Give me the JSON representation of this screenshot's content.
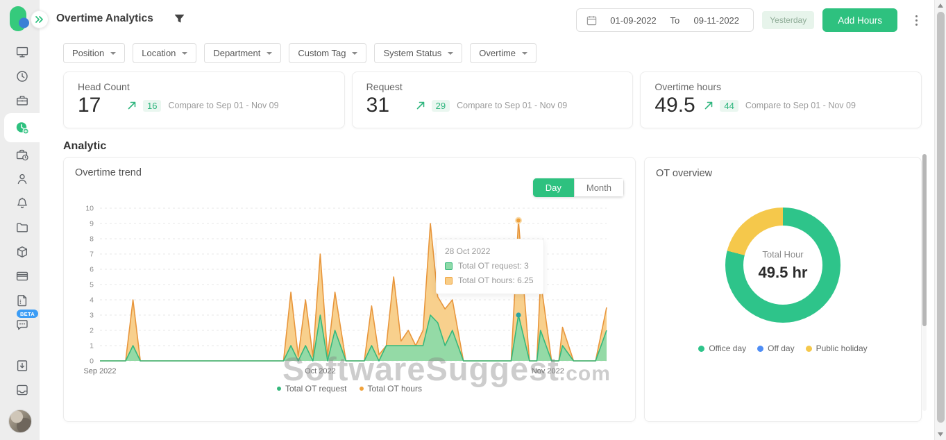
{
  "header": {
    "title": "Overtime Analytics",
    "date_from": "01-09-2022",
    "date_separator": "To",
    "date_to": "09-11-2022",
    "yesterday_label": "Yesterday",
    "add_hours_label": "Add Hours"
  },
  "filters": [
    {
      "label": "Position"
    },
    {
      "label": "Location"
    },
    {
      "label": "Department"
    },
    {
      "label": "Custom Tag"
    },
    {
      "label": "System Status"
    },
    {
      "label": "Overtime"
    }
  ],
  "stats": [
    {
      "title": "Head Count",
      "value": "17",
      "compare_value": "16",
      "compare_text": "Compare to Sep 01 - Nov 09"
    },
    {
      "title": "Request",
      "value": "31",
      "compare_value": "29",
      "compare_text": "Compare to Sep 01 - Nov 09"
    },
    {
      "title": "Overtime hours",
      "value": "49.5",
      "compare_value": "44",
      "compare_text": "Compare to Sep 01 - Nov 09"
    }
  ],
  "section_heading": "Analytic",
  "trend_card": {
    "title": "Overtime trend",
    "toggle_day": "Day",
    "toggle_month": "Month",
    "tooltip": {
      "date": "28 Oct 2022",
      "request_label": "Total OT request: 3",
      "hours_label": "Total OT hours: 6.25"
    },
    "legend": [
      {
        "label": "Total OT request",
        "color": "#35b87c"
      },
      {
        "label": "Total OT hours",
        "color": "#f0a23c"
      }
    ]
  },
  "overview_card": {
    "title": "OT overview",
    "center_label": "Total Hour",
    "center_value": "49.5 hr",
    "legend": [
      {
        "label": "Office day",
        "color": "#2ec48a"
      },
      {
        "label": "Off day",
        "color": "#4e8df5"
      },
      {
        "label": "Public holiday",
        "color": "#f5c84b"
      }
    ]
  },
  "watermark": {
    "text": "SoftwareSuggest",
    "suffix": ".com"
  },
  "sidebar": {
    "beta_badge": "BETA",
    "icons": [
      "monitor-icon",
      "clock-icon",
      "briefcase-icon",
      "overtime-clock-plus-icon",
      "briefcase-clock-icon",
      "person-icon",
      "bell-icon",
      "folder-icon",
      "package-icon",
      "credit-card-icon",
      "document-icon",
      "chat-icon",
      "file-download-icon",
      "inbox-icon",
      "user-avatar"
    ],
    "active_item": "overtime-clock-plus-icon"
  },
  "colors": {
    "accent_green": "#2ec17f",
    "chart_orange_stroke": "#e8963c",
    "chart_orange_fill": "#f8cd87",
    "chart_green_stroke": "#35b87c",
    "chart_green_fill": "#8edaa8",
    "donut_yellow": "#f5c84b",
    "legend_blue": "#4e8df5",
    "beta_blue": "#3b9cf5"
  },
  "chart_data": [
    {
      "type": "area",
      "title": "Overtime trend",
      "x_axis": "days from Sep 1 2022 to Nov 9 2022",
      "x_tick_labels": [
        "Sep 2022",
        "Oct 2022",
        "Nov 2022"
      ],
      "x_tick_positions": [
        0,
        30,
        61
      ],
      "x_range": [
        0,
        69
      ],
      "ylim": [
        0,
        10
      ],
      "y_ticks": [
        0,
        1,
        2,
        3,
        4,
        5,
        6,
        7,
        8,
        9,
        10
      ],
      "grid": "horizontal-dashed",
      "legend_position": "bottom-center",
      "series": [
        {
          "name": "Total OT hours",
          "stroke": "#e8963c",
          "fill": "#f8cd87",
          "points": [
            [
              0,
              0
            ],
            [
              3.5,
              0
            ],
            [
              4.5,
              4
            ],
            [
              5.5,
              0
            ],
            [
              25,
              0
            ],
            [
              26,
              4.5
            ],
            [
              27,
              0.3
            ],
            [
              28,
              4
            ],
            [
              29,
              0.3
            ],
            [
              30,
              7
            ],
            [
              31,
              0.3
            ],
            [
              32,
              4.5
            ],
            [
              33.5,
              0
            ],
            [
              36,
              0
            ],
            [
              37,
              3.6
            ],
            [
              38,
              0.4
            ],
            [
              39,
              1
            ],
            [
              40,
              5.5
            ],
            [
              41,
              1.3
            ],
            [
              42,
              2
            ],
            [
              43,
              1
            ],
            [
              44,
              2
            ],
            [
              45,
              9
            ],
            [
              46,
              4.2
            ],
            [
              47,
              3.4
            ],
            [
              48,
              4
            ],
            [
              49.5,
              0
            ],
            [
              56,
              0
            ],
            [
              57,
              9.2
            ],
            [
              58.5,
              0
            ],
            [
              59.5,
              0
            ],
            [
              60,
              5.3
            ],
            [
              61.5,
              0
            ],
            [
              62.5,
              0
            ],
            [
              63,
              2.2
            ],
            [
              64.5,
              0
            ],
            [
              67.5,
              0
            ],
            [
              69,
              3.5
            ]
          ]
        },
        {
          "name": "Total OT request",
          "stroke": "#35b87c",
          "fill": "#8edaa8",
          "points": [
            [
              0,
              0
            ],
            [
              3.5,
              0
            ],
            [
              4.5,
              1
            ],
            [
              5.5,
              0
            ],
            [
              25,
              0
            ],
            [
              26,
              1
            ],
            [
              27,
              0
            ],
            [
              28,
              1
            ],
            [
              29,
              0
            ],
            [
              30,
              3
            ],
            [
              31,
              0
            ],
            [
              32,
              2
            ],
            [
              33.5,
              0
            ],
            [
              36,
              0
            ],
            [
              37,
              1
            ],
            [
              38,
              0
            ],
            [
              39,
              1
            ],
            [
              40,
              1
            ],
            [
              41,
              1
            ],
            [
              42,
              1
            ],
            [
              43,
              1
            ],
            [
              44,
              1
            ],
            [
              45,
              3
            ],
            [
              46,
              2.5
            ],
            [
              47,
              1
            ],
            [
              48,
              2
            ],
            [
              49.5,
              0
            ],
            [
              56,
              0
            ],
            [
              57,
              3
            ],
            [
              58.5,
              0
            ],
            [
              59.5,
              0
            ],
            [
              60,
              2
            ],
            [
              61.5,
              0
            ],
            [
              62.5,
              0
            ],
            [
              63,
              1
            ],
            [
              64.5,
              0
            ],
            [
              67.5,
              0
            ],
            [
              69,
              2
            ]
          ]
        }
      ],
      "highlight": {
        "day": 57,
        "date": "28 Oct 2022",
        "request": 3,
        "hours": 6.25,
        "marker_hours_value": 9.2,
        "marker_request_value": 3,
        "marker_hours_color": "#f0a23c",
        "marker_request_color": "#2ba3a3"
      }
    },
    {
      "type": "donut",
      "title": "OT overview",
      "labels": [
        "Office day",
        "Off day",
        "Public holiday"
      ],
      "percentages": [
        79,
        0,
        21
      ],
      "colors": [
        "#2ec48a",
        "#4e8df5",
        "#f5c84b"
      ],
      "center_label": "Total Hour",
      "center_value": "49.5 hr",
      "legend_position": "bottom-center"
    }
  ]
}
